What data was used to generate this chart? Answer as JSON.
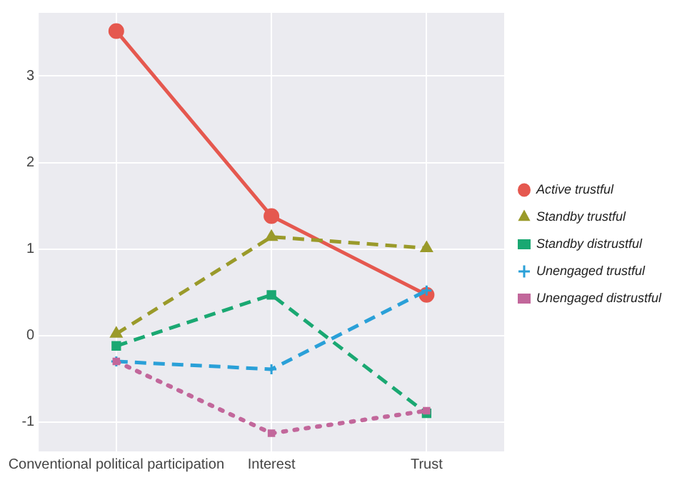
{
  "chart_data": {
    "type": "line",
    "categories": [
      "Conventional political participation",
      "Interest",
      "Trust"
    ],
    "series": [
      {
        "name": "Active trustful",
        "color": "#e5584f",
        "values": [
          3.52,
          1.38,
          0.47
        ],
        "marker": "circle",
        "line_style": "solid"
      },
      {
        "name": "Standby trustful",
        "color": "#9a9a2a",
        "values": [
          0.02,
          1.14,
          1.01
        ],
        "marker": "triangle",
        "line_style": "dashed"
      },
      {
        "name": "Standby distrustful",
        "color": "#1aa872",
        "values": [
          -0.12,
          0.47,
          -0.9
        ],
        "marker": "square",
        "line_style": "dashed"
      },
      {
        "name": "Unengaged trustful",
        "color": "#2aa0d8",
        "values": [
          -0.3,
          -0.39,
          0.52
        ],
        "marker": "cross",
        "line_style": "dashed"
      },
      {
        "name": "Unengaged distrustful",
        "color": "#c2679b",
        "values": [
          -0.3,
          -1.13,
          -0.87
        ],
        "marker": "square",
        "line_style": "dotted"
      }
    ],
    "ylim": [
      -1.34,
      3.73
    ],
    "yticks": [
      -1,
      0,
      1,
      2,
      3
    ],
    "grid": true,
    "legend": "right"
  }
}
